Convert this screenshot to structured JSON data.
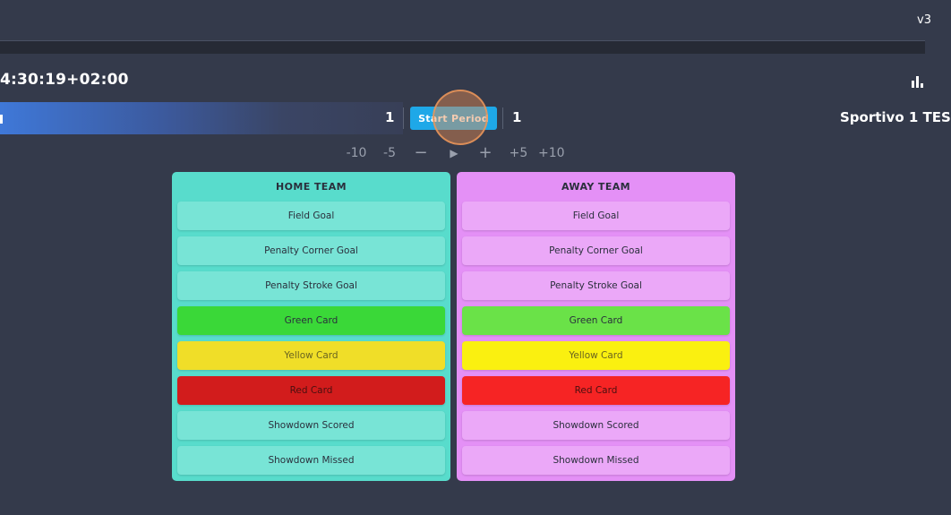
{
  "header": {
    "version": "v3"
  },
  "match": {
    "timestamp": "4:30:19+02:00",
    "home_score": "1",
    "away_score": "1",
    "away_team_name": "Sportivo 1 TES",
    "start_period_label": "Start Period"
  },
  "icons": {
    "stats": "bar-chart-icon",
    "play": "play-icon",
    "minus": "minus-icon",
    "plus": "plus-icon"
  },
  "time_controls": {
    "minus10": "-10",
    "minus5": "-5",
    "minus": "−",
    "play": "▶",
    "plus": "+",
    "plus5": "+5",
    "plus10": "+10"
  },
  "home_panel": {
    "title": "HOME TEAM",
    "events": [
      "Field Goal",
      "Penalty Corner Goal",
      "Penalty Stroke Goal",
      "Green Card",
      "Yellow Card",
      "Red Card",
      "Showdown Scored",
      "Showdown Missed"
    ]
  },
  "away_panel": {
    "title": "AWAY TEAM",
    "events": [
      "Field Goal",
      "Penalty Corner Goal",
      "Penalty Stroke Goal",
      "Green Card",
      "Yellow Card",
      "Red Card",
      "Showdown Scored",
      "Showdown Missed"
    ]
  },
  "colors": {
    "background": "#343a4b",
    "home_panel": "#58dccc",
    "away_panel": "#e490f6",
    "start_button": "#1ea8e8",
    "green_card": "#3ad838",
    "yellow_card": "#f0de28",
    "red_card": "#d21c1c"
  }
}
